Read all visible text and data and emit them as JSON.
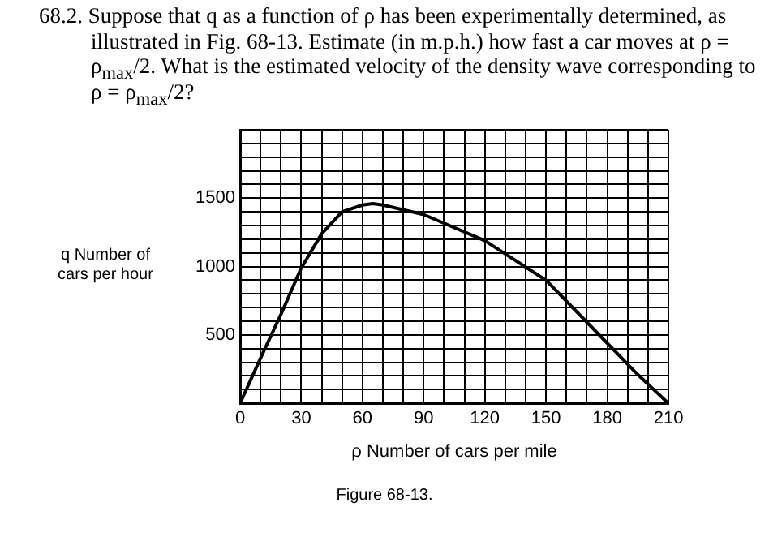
{
  "chart_data": {
    "type": "line",
    "title": "68.2. Suppose that q as a function of ρ has been experimentally determined, as illustrated in Fig. 68-13. Estimate (in m.p.h.) how fast a car moves at ρ = ρ$_{max}$/2. What is the estimated velocity of the density wave corresponding to ρ = ρ$_{max}$/2?",
    "xlabel": "ρ Number of cars per mile",
    "ylabel": "q Number of cars per hour",
    "annotations": [
      "Figure 68-13."
    ],
    "x": [
      0,
      10,
      20,
      30,
      40,
      50,
      60,
      65,
      70,
      90,
      120,
      150,
      180,
      195,
      210
    ],
    "series": [
      {
        "color": "#000000",
        "values": [
          0,
          330,
          650,
          990,
          1240,
          1400,
          1450,
          1460,
          1450,
          1380,
          1190,
          900,
          440,
          210,
          0
        ]
      }
    ],
    "xlim": [
      0,
      210
    ],
    "ylim": [
      0,
      2000
    ],
    "xticks": [
      0,
      {
        "value": 10,
        "label": null
      },
      {
        "value": 20,
        "label": null
      },
      30,
      {
        "value": 40,
        "label": null
      },
      {
        "value": 50,
        "label": null
      },
      60,
      {
        "value": 70,
        "label": null
      },
      {
        "value": 80,
        "label": null
      },
      90,
      {
        "value": 100,
        "label": null
      },
      {
        "value": 110,
        "label": null
      },
      120,
      {
        "value": 130,
        "label": null
      },
      {
        "value": 140,
        "label": null
      },
      150,
      {
        "value": 160,
        "label": null
      },
      {
        "value": 170,
        "label": null
      },
      180,
      {
        "value": 190,
        "label": null
      },
      {
        "value": 200,
        "label": null
      },
      210
    ],
    "yticks": [
      {
        "value": 0,
        "label": null
      },
      {
        "value": 100,
        "label": null
      },
      {
        "value": 200,
        "label": null
      },
      {
        "value": 300,
        "label": null
      },
      {
        "value": 400,
        "label": null
      },
      500,
      {
        "value": 600,
        "label": null
      },
      {
        "value": 700,
        "label": null
      },
      {
        "value": 800,
        "label": null
      },
      {
        "value": 900,
        "label": null
      },
      1000,
      {
        "value": 1100,
        "label": null
      },
      {
        "value": 1200,
        "label": null
      },
      {
        "value": 1300,
        "label": null
      },
      {
        "value": 1400,
        "label": null
      },
      1500,
      {
        "value": 1600,
        "label": null
      },
      {
        "value": 1700,
        "label": null
      },
      {
        "value": 1800,
        "label": null
      },
      {
        "value": 1900,
        "label": null
      },
      {
        "value": 2000,
        "label": null
      }
    ],
    "grid": true,
    "legend": false,
    "line_style": "solid"
  }
}
